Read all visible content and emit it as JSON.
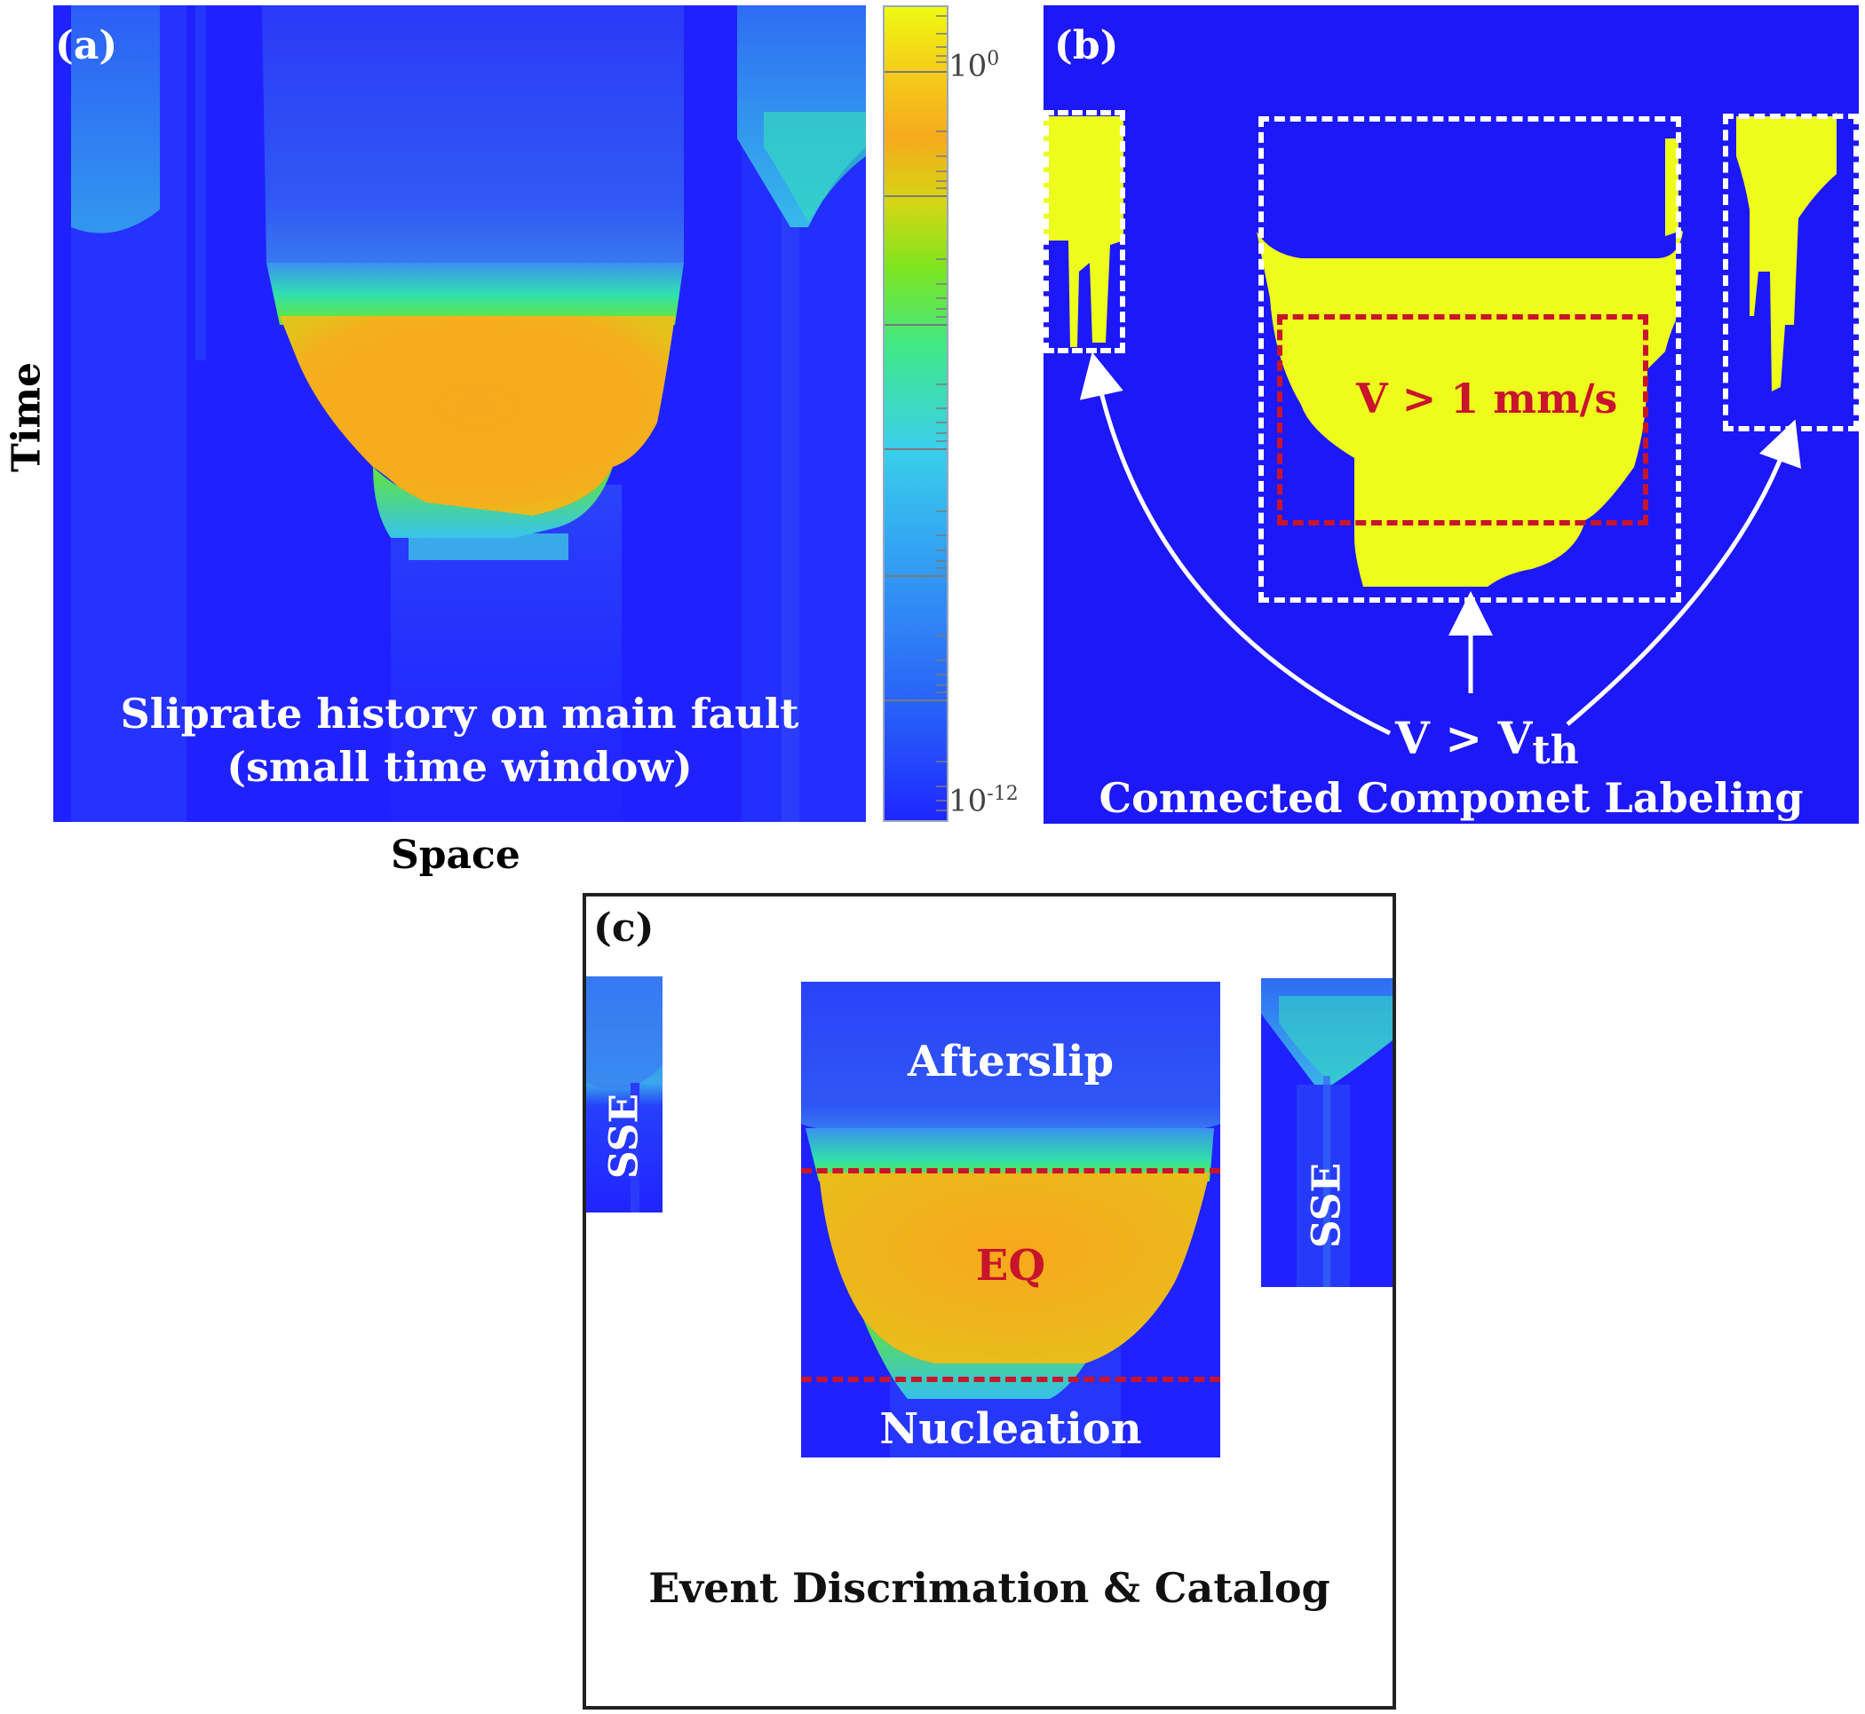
{
  "panels": {
    "a": {
      "label": "(a)",
      "caption_line1": "Sliprate history on main fault",
      "caption_line2": "(small time window)",
      "ylabel": "Time",
      "xlabel": "Space"
    },
    "colorbar": {
      "top_label_base": "10",
      "top_label_exp": "0",
      "bottom_label_base": "10",
      "bottom_label_exp": "-12",
      "colormap": "jet"
    },
    "b": {
      "label": "(b)",
      "threshold_label": "V > 1 mm/s",
      "vth_main": "V > V",
      "vth_sub": "th",
      "caption": "Connected Componet Labeling"
    },
    "c": {
      "label": "(c)",
      "afterslip": "Afterslip",
      "eq": "EQ",
      "nucleation": "Nucleation",
      "sse_left": "SSE",
      "sse_right": "SSE",
      "caption": "Event Discrimation & Catalog"
    }
  },
  "colors": {
    "background_blue": "#1f22ff",
    "threshold_yellow": "#eefc1c",
    "eq_orange": "#f6aa1c",
    "red_dash": "#c8142c",
    "white": "#ffffff"
  }
}
